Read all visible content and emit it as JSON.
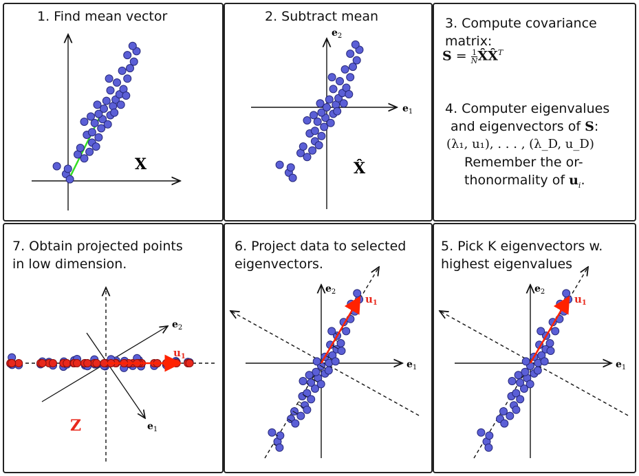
{
  "colors": {
    "point": "#5b5fd6",
    "point_stroke": "#26287a",
    "mean_vector": "#33dd22",
    "u1": "#ff2200",
    "projected": "#e8281c"
  },
  "panels": {
    "p1": {
      "title": "1. Find mean vector",
      "data_label": "X"
    },
    "p2": {
      "title": "2. Subtract mean",
      "data_label": "X̂",
      "axis_e1": "e",
      "axis_e2": "e",
      "sub1": "1",
      "sub2": "2"
    },
    "p3": {
      "step3_line1": "3. Compute covariance",
      "step3_line2": "matrix:",
      "formula_lhs": "S",
      "formula_eq": "=",
      "formula_num": "1",
      "formula_den": "N",
      "formula_rhs": "X̂X̂",
      "formula_sup": "T",
      "step4_line1": "4. Computer eigenvalues",
      "step4_line2_a": "and eigenvectors of",
      "step4_line2_b": "S",
      "step4_line2_c": ":",
      "step4_line3": "(λ₁, u₁), . . . , (λ_D, u_D)",
      "step4_line4": "Remember the or-",
      "step4_line5_a": "thonormality of",
      "step4_line5_b": "u",
      "step4_line5_c": "i",
      "step4_line5_d": "."
    },
    "p5": {
      "title_line1": "5. Pick K eigenvectors w.",
      "title_line2": "highest eigenvalues",
      "u_label": "u",
      "u_sub": "1",
      "e1": "e",
      "e2": "e",
      "sub1": "1",
      "sub2": "2"
    },
    "p6": {
      "title_line1": "6. Project data to selected",
      "title_line2": "eigenvectors.",
      "u_label": "u",
      "u_sub": "1",
      "e1": "e",
      "e2": "e",
      "sub1": "1",
      "sub2": "2"
    },
    "p7": {
      "title_line1": "7. Obtain projected points",
      "title_line2": "in low dimension.",
      "u_label": "u",
      "u_sub": "1",
      "e1": "e",
      "e2": "e",
      "sub1": "1",
      "sub2": "2",
      "z_label": "Z"
    }
  }
}
